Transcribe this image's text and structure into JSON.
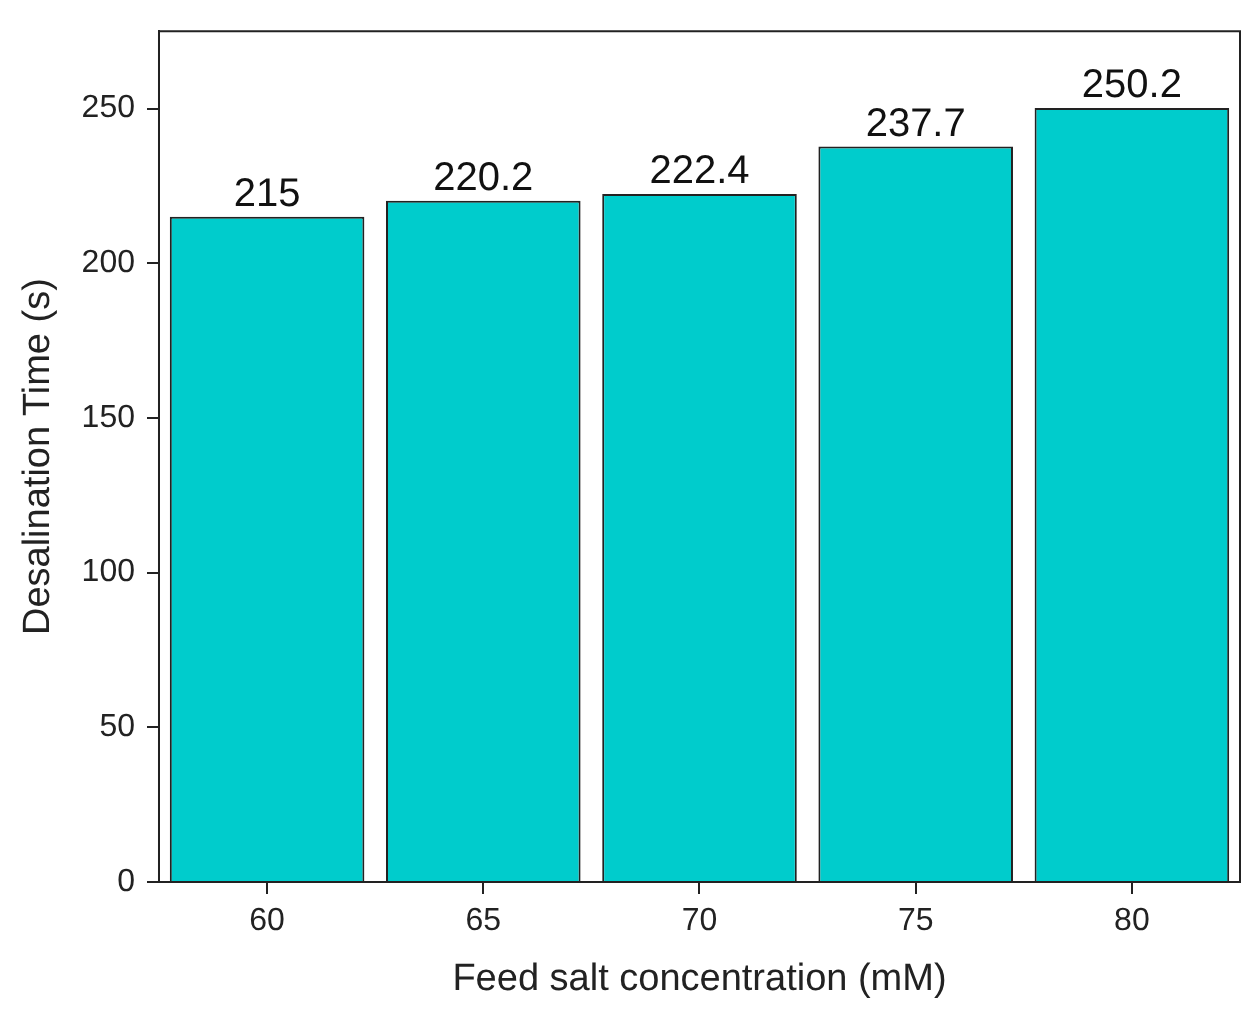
{
  "chart_data": {
    "type": "bar",
    "xlabel": "Feed salt concentration (mM)",
    "ylabel": "Desalination Time (s)",
    "categories": [
      "60",
      "65",
      "70",
      "75",
      "80"
    ],
    "values": [
      215,
      220.2,
      222.4,
      237.7,
      250.2
    ],
    "color": "#00cccc",
    "ylim": [
      0,
      275
    ],
    "yticks": [
      0,
      50,
      100,
      150,
      200,
      250
    ],
    "grid": false,
    "legend": false,
    "data_labels": true
  }
}
